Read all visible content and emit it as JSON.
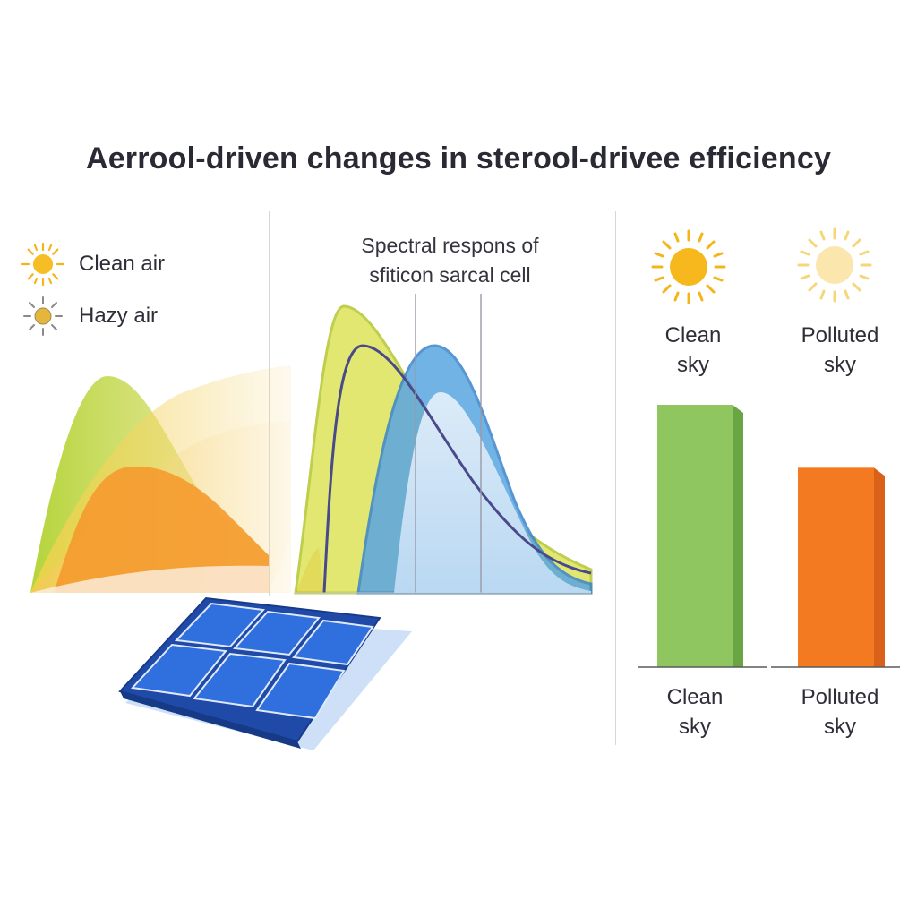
{
  "title": "Aerrool-driven changes in sterool-drivee efficiency",
  "legend": {
    "items": [
      {
        "label": "Clean air",
        "icon": "bright-sun-icon",
        "color": "#f5b41a"
      },
      {
        "label": "Hazy air",
        "icon": "hazy-sun-icon",
        "color": "#c9a43c"
      }
    ]
  },
  "spectral_title": [
    "Spectral respons of",
    "sfiticon sarcal cell"
  ],
  "bar_panel": {
    "top_labels": [
      {
        "line1": "Clean",
        "line2": "sky",
        "icon": "bright-sun-icon"
      },
      {
        "line1": "Polluted",
        "line2": "sky",
        "icon": "pale-sun-icon"
      }
    ],
    "bottom_labels": [
      {
        "line1": "Clean",
        "line2": "sky"
      },
      {
        "line1": "Polluted",
        "line2": "sky"
      }
    ]
  },
  "colors": {
    "clean": "#8fc65f",
    "polluted": "#f47a22",
    "silicon_response": "#3a8ed6",
    "irradiance_clean": "#cfe04e",
    "panel_blue": "#2b5fc7"
  },
  "chart_data": [
    {
      "type": "bar",
      "categories": [
        "Clean sky",
        "Polluted sky"
      ],
      "values": [
        100,
        76
      ],
      "ylim": [
        0,
        100
      ],
      "title": "",
      "xlabel": "",
      "ylabel": "",
      "grid": false
    }
  ]
}
